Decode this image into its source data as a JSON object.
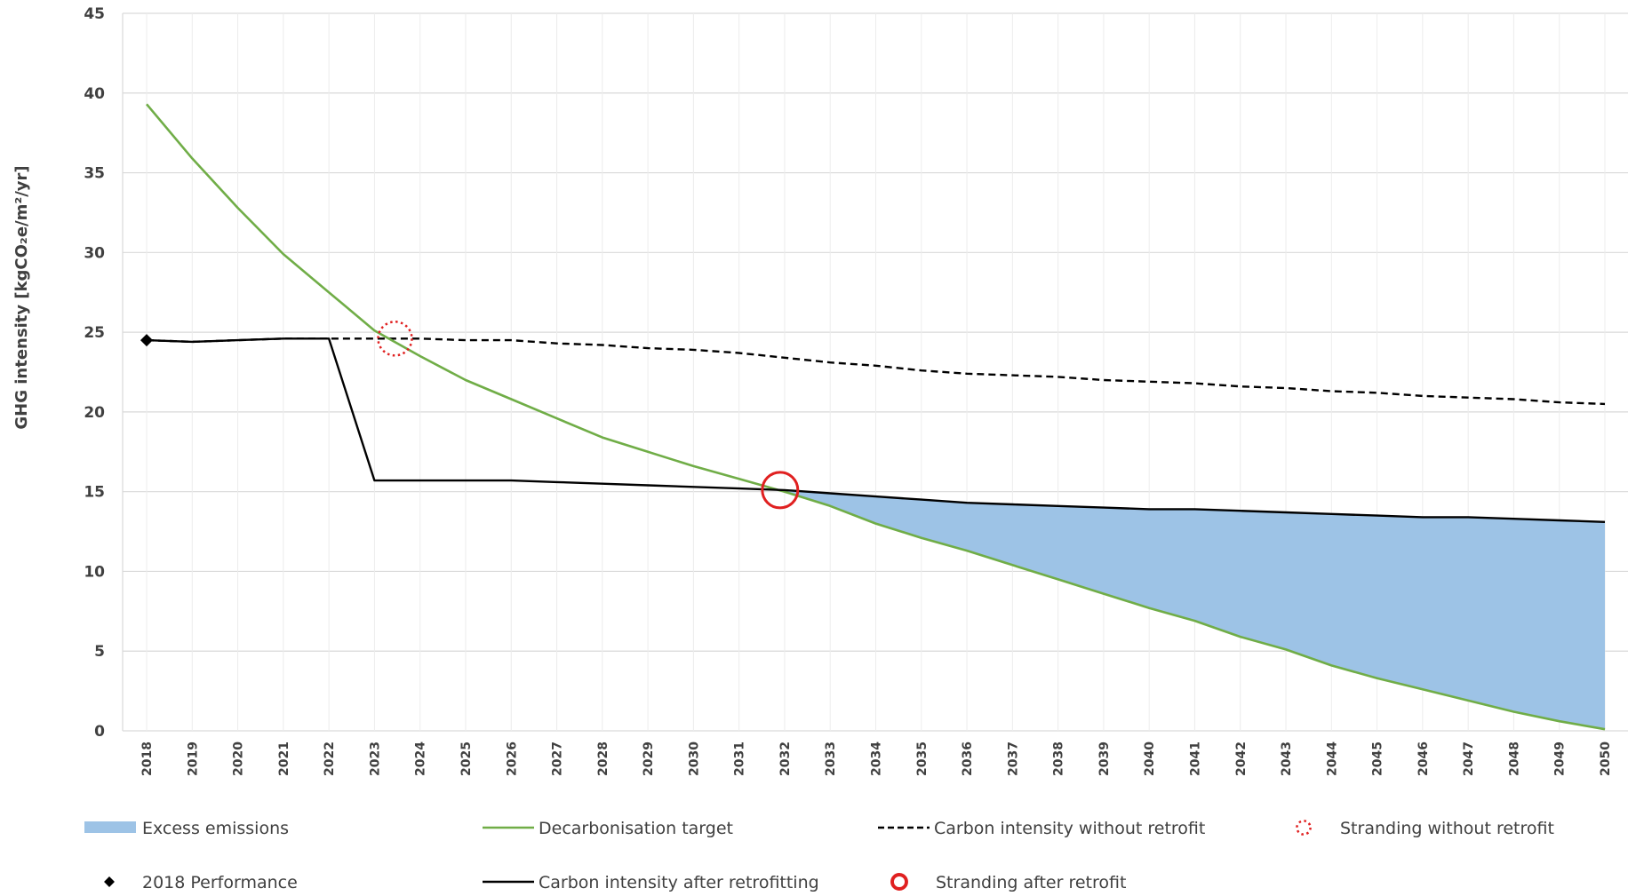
{
  "chart_data": {
    "type": "line",
    "ylabel": "GHG intensity [kgCO₂e/m²/yr]",
    "ylim": [
      0,
      45
    ],
    "yticks": [
      0,
      5,
      10,
      15,
      20,
      25,
      30,
      35,
      40,
      45
    ],
    "grid": true,
    "categories": [
      "2018",
      "2019",
      "2020",
      "2021",
      "2022",
      "2023",
      "2024",
      "2025",
      "2026",
      "2027",
      "2028",
      "2029",
      "2030",
      "2031",
      "2032",
      "2033",
      "2034",
      "2035",
      "2036",
      "2037",
      "2038",
      "2039",
      "2040",
      "2041",
      "2042",
      "2043",
      "2044",
      "2045",
      "2046",
      "2047",
      "2048",
      "2049",
      "2050"
    ],
    "series": [
      {
        "name": "Decarbonisation target",
        "color": "#70ad47",
        "style": "solid",
        "values": [
          39.3,
          35.9,
          32.8,
          29.9,
          27.5,
          25.1,
          23.5,
          22.0,
          20.8,
          19.6,
          18.4,
          17.5,
          16.6,
          15.8,
          15.0,
          14.1,
          13.0,
          12.1,
          11.3,
          10.4,
          9.5,
          8.6,
          7.7,
          6.9,
          5.9,
          5.1,
          4.1,
          3.3,
          2.6,
          1.9,
          1.2,
          0.6,
          0.1
        ]
      },
      {
        "name": "Carbon intensity without retrofit",
        "color": "#000000",
        "style": "dashed",
        "values": [
          24.5,
          24.4,
          24.5,
          24.6,
          24.6,
          24.6,
          24.6,
          24.5,
          24.5,
          24.3,
          24.2,
          24.0,
          23.9,
          23.7,
          23.4,
          23.1,
          22.9,
          22.6,
          22.4,
          22.3,
          22.2,
          22.0,
          21.9,
          21.8,
          21.6,
          21.5,
          21.3,
          21.2,
          21.0,
          20.9,
          20.8,
          20.6,
          20.5
        ]
      },
      {
        "name": "Carbon intensity after retrofitting",
        "color": "#000000",
        "style": "solid",
        "values": [
          24.5,
          24.4,
          24.5,
          24.6,
          24.6,
          15.7,
          15.7,
          15.7,
          15.7,
          15.6,
          15.5,
          15.4,
          15.3,
          15.2,
          15.1,
          14.9,
          14.7,
          14.5,
          14.3,
          14.2,
          14.1,
          14.0,
          13.9,
          13.9,
          13.8,
          13.7,
          13.6,
          13.5,
          13.4,
          13.4,
          13.3,
          13.2,
          13.1
        ]
      }
    ],
    "excess_emissions": {
      "name": "Excess emissions",
      "color": "#9dc3e6",
      "from_year": "2032",
      "to_year": "2050"
    },
    "markers": [
      {
        "name": "2018 Performance",
        "year": 2018,
        "y": 24.5,
        "shape": "diamond",
        "color": "#000000"
      },
      {
        "name": "Stranding without retrofit",
        "year": 2023.45,
        "y": 24.6,
        "shape": "dotted-circle",
        "color": "#e02020"
      },
      {
        "name": "Stranding after retrofit",
        "year": 2031.9,
        "y": 15.1,
        "shape": "circle",
        "color": "#e02020"
      }
    ],
    "legend": {
      "placement": "bottom",
      "entries": [
        {
          "label": "Excess emissions",
          "symbol": "area",
          "color": "#9dc3e6"
        },
        {
          "label": "Decarbonisation target",
          "symbol": "line",
          "color": "#70ad47"
        },
        {
          "label": "Carbon intensity without retrofit",
          "symbol": "dashed-line",
          "color": "#000000"
        },
        {
          "label": "Stranding without retrofit",
          "symbol": "dotted-circle",
          "color": "#e02020"
        },
        {
          "label": "2018 Performance",
          "symbol": "diamond",
          "color": "#000000"
        },
        {
          "label": "Carbon intensity after retrofitting",
          "symbol": "line",
          "color": "#000000"
        },
        {
          "label": "Stranding after retrofit",
          "symbol": "circle",
          "color": "#e02020"
        }
      ]
    }
  }
}
